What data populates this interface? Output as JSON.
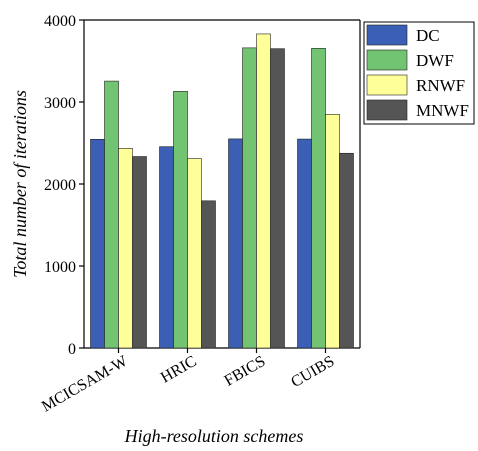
{
  "chart_data": {
    "type": "bar",
    "categories": [
      "MCICSAM-W",
      "HRIC",
      "FBICS",
      "CUIBS"
    ],
    "series": [
      {
        "name": "DC",
        "color": "#3a5fb5",
        "values": [
          2545,
          2455,
          2550,
          2548
        ]
      },
      {
        "name": "DWF",
        "color": "#72c472",
        "values": [
          3255,
          3130,
          3660,
          3655
        ]
      },
      {
        "name": "RNWF",
        "color": "#ffff99",
        "values": [
          2435,
          2310,
          3830,
          2850
        ]
      },
      {
        "name": "MNWF",
        "color": "#555555",
        "values": [
          2335,
          1795,
          3650,
          2375
        ]
      }
    ],
    "xlabel": "High-resolution schemes",
    "ylabel": "Total number of iterations",
    "ylim": [
      0,
      4000
    ],
    "yticks": [
      "0",
      "1000",
      "2000",
      "3000",
      "4000"
    ],
    "legend_position": "top-right",
    "grid": false
  }
}
